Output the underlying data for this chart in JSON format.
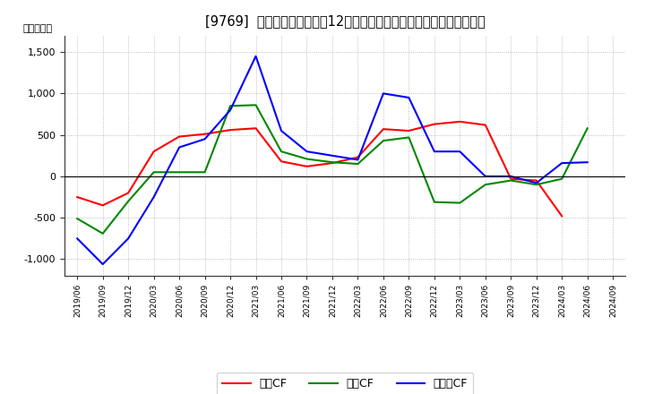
{
  "title": "[9769]  キャッシュフローの12か月移動合計の対前年同期増減額の推移",
  "ylabel": "（百万円）",
  "dates": [
    "2019/06",
    "2019/09",
    "2019/12",
    "2020/03",
    "2020/06",
    "2020/09",
    "2020/12",
    "2021/03",
    "2021/06",
    "2021/09",
    "2021/12",
    "2022/03",
    "2022/06",
    "2022/09",
    "2022/12",
    "2023/03",
    "2023/06",
    "2023/09",
    "2023/12",
    "2024/03",
    "2024/06",
    "2024/09"
  ],
  "operating_cf": [
    -250,
    -350,
    -200,
    300,
    480,
    510,
    560,
    580,
    180,
    120,
    160,
    230,
    570,
    550,
    630,
    660,
    620,
    -30,
    -50,
    -480,
    null,
    null
  ],
  "investing_cf": [
    -510,
    -690,
    -300,
    50,
    50,
    50,
    850,
    860,
    300,
    210,
    170,
    150,
    430,
    470,
    -310,
    -320,
    -100,
    -50,
    -100,
    -30,
    580,
    null
  ],
  "free_cf": [
    -750,
    -1060,
    -750,
    -250,
    350,
    450,
    800,
    1450,
    550,
    300,
    250,
    200,
    1000,
    950,
    300,
    300,
    0,
    0,
    -80,
    160,
    170,
    null
  ],
  "ylim": [
    -1200,
    1700
  ],
  "yticks": [
    -1000,
    -500,
    0,
    500,
    1000,
    1500
  ],
  "operating_color": "#ff0000",
  "investing_color": "#008800",
  "free_color": "#0000ff",
  "bg_color": "#ffffff",
  "grid_color": "#999999",
  "title_fontsize": 10.5,
  "legend_labels": [
    "営業CF",
    "投賄CF",
    "フリーCF"
  ]
}
